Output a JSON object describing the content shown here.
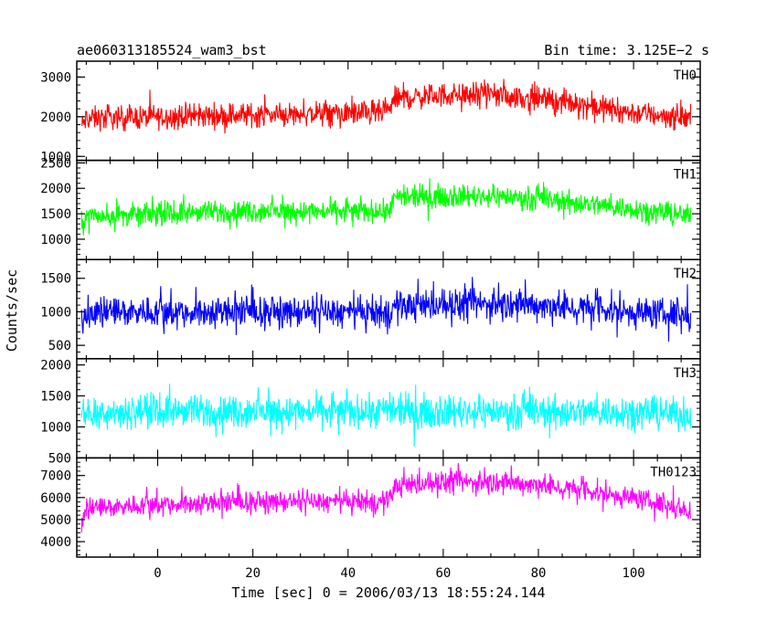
{
  "header": {
    "left_title": "ae060313185524_wam3_bst",
    "right_title": "Bin time: 3.125E−2 s"
  },
  "chart_data": {
    "type": "line",
    "xlabel": "Time [sec] 0 = 2006/03/13 18:55:24.144",
    "ylabel": "Counts/sec",
    "xlim": [
      -17,
      114
    ],
    "x_ticks": [
      0,
      20,
      40,
      60,
      80,
      100
    ],
    "x_range_data": [
      -16,
      112
    ],
    "panels": [
      {
        "name": "TH0",
        "color": "#ff0000",
        "ylim": [
          900,
          3400
        ],
        "yticks": [
          1000,
          2000,
          3000
        ],
        "profile": {
          "x": [
            -16,
            -15,
            0,
            20,
            48,
            50,
            60,
            70,
            80,
            90,
            100,
            112
          ],
          "mean": [
            1750,
            1950,
            2000,
            2050,
            2100,
            2450,
            2550,
            2550,
            2450,
            2300,
            2100,
            1950
          ]
        },
        "spread": 450
      },
      {
        "name": "TH1",
        "color": "#00ff00",
        "ylim": [
          600,
          2550
        ],
        "yticks": [
          1000,
          1500,
          2000,
          2500
        ],
        "profile": {
          "x": [
            -16,
            -15,
            0,
            20,
            48,
            50,
            60,
            70,
            80,
            90,
            100,
            112
          ],
          "mean": [
            1300,
            1450,
            1500,
            1550,
            1550,
            1800,
            1850,
            1850,
            1800,
            1700,
            1600,
            1450
          ]
        },
        "spread": 320
      },
      {
        "name": "TH2",
        "color": "#0000ff",
        "ylim": [
          300,
          1780
        ],
        "yticks": [
          500,
          1000,
          1500
        ],
        "profile": {
          "x": [
            -16,
            -15,
            0,
            20,
            48,
            50,
            60,
            70,
            80,
            90,
            100,
            112
          ],
          "mean": [
            900,
            1000,
            1000,
            1000,
            980,
            1080,
            1100,
            1120,
            1100,
            1050,
            1000,
            950
          ]
        },
        "spread": 330
      },
      {
        "name": "TH3",
        "color": "#00ffff",
        "ylim": [
          500,
          2100
        ],
        "yticks": [
          500,
          1000,
          1500,
          2000
        ],
        "profile": {
          "x": [
            -16,
            -15,
            0,
            20,
            48,
            50,
            60,
            70,
            80,
            90,
            100,
            112
          ],
          "mean": [
            1150,
            1250,
            1250,
            1250,
            1250,
            1250,
            1250,
            1250,
            1250,
            1250,
            1250,
            1200
          ]
        },
        "spread": 380
      },
      {
        "name": "TH0123",
        "color": "#ff00ff",
        "ylim": [
          3300,
          7800
        ],
        "yticks": [
          4000,
          5000,
          6000,
          7000
        ],
        "profile": {
          "x": [
            -16,
            -15,
            0,
            20,
            48,
            50,
            60,
            70,
            80,
            90,
            100,
            112
          ],
          "mean": [
            4700,
            5500,
            5700,
            5800,
            5800,
            6500,
            6700,
            6700,
            6600,
            6300,
            6000,
            5400
          ]
        },
        "spread": 700
      }
    ]
  }
}
